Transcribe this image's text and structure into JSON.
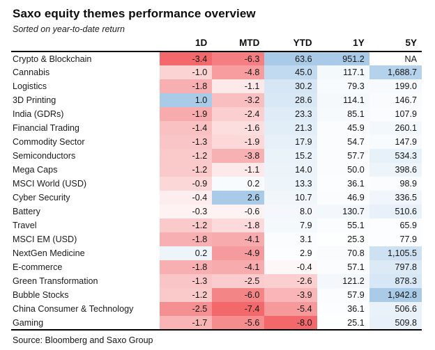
{
  "header": {
    "title": "Saxo equity themes performance overview",
    "subtitle": "Sorted on year-to-date return"
  },
  "footer": {
    "source": "Source: Bloomberg and Saxo Group"
  },
  "heatmap": {
    "negative_color": "#f2686b",
    "positive_color": "#a9cbe8",
    "neutral_color": "#ffffff",
    "scaling": "per-column-per-sign"
  },
  "chart_data": {
    "type": "table",
    "title": "Saxo equity themes performance overview",
    "subtitle": "Sorted on year-to-date return",
    "columns": [
      "1D",
      "MTD",
      "YTD",
      "1Y",
      "5Y"
    ],
    "rows": [
      {
        "name": "Crypto & Blockchain",
        "values": [
          "-3.4",
          "-6.3",
          "63.6",
          "951.2",
          "NA"
        ]
      },
      {
        "name": "Cannabis",
        "values": [
          "-1.0",
          "-4.8",
          "45.0",
          "117.1",
          "1,688.7"
        ]
      },
      {
        "name": "Logistics",
        "values": [
          "-1.8",
          "-1.1",
          "30.2",
          "79.3",
          "199.0"
        ]
      },
      {
        "name": "3D Printing",
        "values": [
          "1.0",
          "-3.2",
          "28.6",
          "114.1",
          "146.7"
        ]
      },
      {
        "name": "India (GDRs)",
        "values": [
          "-1.9",
          "-2.4",
          "23.3",
          "85.1",
          "107.9"
        ]
      },
      {
        "name": "Financial Trading",
        "values": [
          "-1.4",
          "-1.6",
          "21.3",
          "45.9",
          "260.1"
        ]
      },
      {
        "name": "Commodity Sector",
        "values": [
          "-1.3",
          "-1.9",
          "17.9",
          "54.7",
          "147.9"
        ]
      },
      {
        "name": "Semiconductors",
        "values": [
          "-1.2",
          "-3.8",
          "15.2",
          "57.7",
          "534.3"
        ]
      },
      {
        "name": "Mega Caps",
        "values": [
          "-1.2",
          "-1.1",
          "14.0",
          "50.0",
          "398.6"
        ]
      },
      {
        "name": "MSCI World (USD)",
        "values": [
          "-0.9",
          "0.2",
          "13.3",
          "36.1",
          "98.9"
        ]
      },
      {
        "name": "Cyber Security",
        "values": [
          "-0.4",
          "2.6",
          "10.7",
          "46.9",
          "336.5"
        ]
      },
      {
        "name": "Battery",
        "values": [
          "-0.3",
          "-0.6",
          "8.0",
          "130.7",
          "510.6"
        ]
      },
      {
        "name": "Travel",
        "values": [
          "-1.2",
          "-1.8",
          "7.9",
          "55.1",
          "65.9"
        ]
      },
      {
        "name": "MSCI EM (USD)",
        "values": [
          "-1.8",
          "-4.1",
          "3.1",
          "25.3",
          "77.9"
        ]
      },
      {
        "name": "NextGen Medicine",
        "values": [
          "0.2",
          "-4.9",
          "2.9",
          "70.8",
          "1,105.5"
        ]
      },
      {
        "name": "E-commerce",
        "values": [
          "-1.8",
          "-4.1",
          "-0.4",
          "57.1",
          "797.8"
        ]
      },
      {
        "name": "Green Transformation",
        "values": [
          "-1.3",
          "-2.5",
          "-2.6",
          "121.2",
          "878.3"
        ]
      },
      {
        "name": "Bubble Stocks",
        "values": [
          "-1.2",
          "-6.0",
          "-3.9",
          "57.9",
          "1,942.8"
        ]
      },
      {
        "name": "China Consumer & Technology",
        "values": [
          "-2.5",
          "-7.4",
          "-5.4",
          "36.1",
          "506.6"
        ]
      },
      {
        "name": "Gaming",
        "values": [
          "-1.7",
          "-5.6",
          "-8.0",
          "25.1",
          "509.8"
        ]
      }
    ],
    "source": "Source: Bloomberg and Saxo Group"
  }
}
